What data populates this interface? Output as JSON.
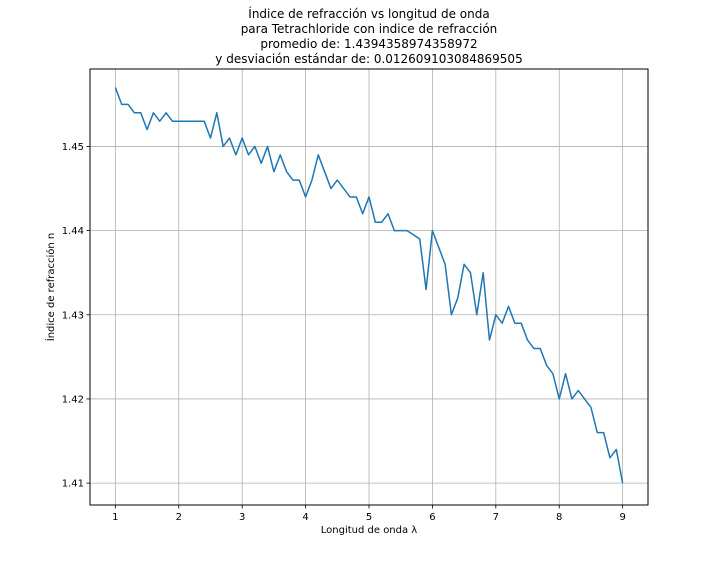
{
  "chart_data": {
    "type": "line",
    "title_lines": [
      "Índice de refracción vs longitud de onda",
      "para Tetrachloride con indice de refracción",
      "promedio de: 1.4394358974358972",
      "y desviación estándar de: 0.012609103084869505"
    ],
    "xlabel": "Longitud de onda λ",
    "ylabel": "Índice de refracción n",
    "xlim": [
      0.6,
      9.4
    ],
    "ylim": [
      1.4074,
      1.4592
    ],
    "x_ticks": [
      1,
      2,
      3,
      4,
      5,
      6,
      7,
      8,
      9
    ],
    "y_ticks": [
      1.41,
      1.42,
      1.43,
      1.44,
      1.45
    ],
    "y_tick_labels": [
      "1.41",
      "1.42",
      "1.43",
      "1.44",
      "1.45"
    ],
    "grid": true,
    "line_color": "#1f77b4",
    "series": [
      {
        "x": [
          1.0,
          1.1,
          1.2,
          1.3,
          1.4,
          1.5,
          1.6,
          1.7,
          1.8,
          1.9,
          2.0,
          2.1,
          2.2,
          2.3,
          2.4,
          2.5,
          2.6,
          2.7,
          2.8,
          2.9,
          3.0,
          3.1,
          3.2,
          3.3,
          3.4,
          3.5,
          3.6,
          3.7,
          3.8,
          3.9,
          4.0,
          4.1,
          4.2,
          4.3,
          4.4,
          4.5,
          4.6,
          4.7,
          4.8,
          4.9,
          5.0,
          5.1,
          5.2,
          5.3,
          5.4,
          5.5,
          5.6,
          5.7,
          5.8,
          5.9,
          6.0,
          6.1,
          6.2,
          6.3,
          6.4,
          6.5,
          6.6,
          6.7,
          6.8,
          6.9,
          7.0,
          7.1,
          7.2,
          7.3,
          7.4,
          7.5,
          7.6,
          7.7,
          7.8,
          7.9,
          8.0,
          8.1,
          8.2,
          8.3,
          8.4,
          8.5,
          8.6,
          8.7,
          8.8,
          8.9,
          9.0
        ],
        "y": [
          1.457,
          1.455,
          1.455,
          1.454,
          1.454,
          1.452,
          1.454,
          1.453,
          1.454,
          1.453,
          1.453,
          1.453,
          1.453,
          1.453,
          1.453,
          1.451,
          1.454,
          1.45,
          1.451,
          1.449,
          1.451,
          1.449,
          1.45,
          1.448,
          1.45,
          1.447,
          1.449,
          1.447,
          1.446,
          1.446,
          1.444,
          1.446,
          1.449,
          1.447,
          1.445,
          1.446,
          1.445,
          1.444,
          1.444,
          1.442,
          1.444,
          1.441,
          1.441,
          1.442,
          1.44,
          1.44,
          1.44,
          1.4395,
          1.439,
          1.433,
          1.44,
          1.438,
          1.436,
          1.43,
          1.432,
          1.436,
          1.435,
          1.43,
          1.435,
          1.427,
          1.43,
          1.429,
          1.431,
          1.429,
          1.429,
          1.427,
          1.426,
          1.426,
          1.424,
          1.423,
          1.42,
          1.423,
          1.42,
          1.421,
          1.42,
          1.419,
          1.416,
          1.416,
          1.413,
          1.414,
          1.41
        ]
      }
    ]
  }
}
